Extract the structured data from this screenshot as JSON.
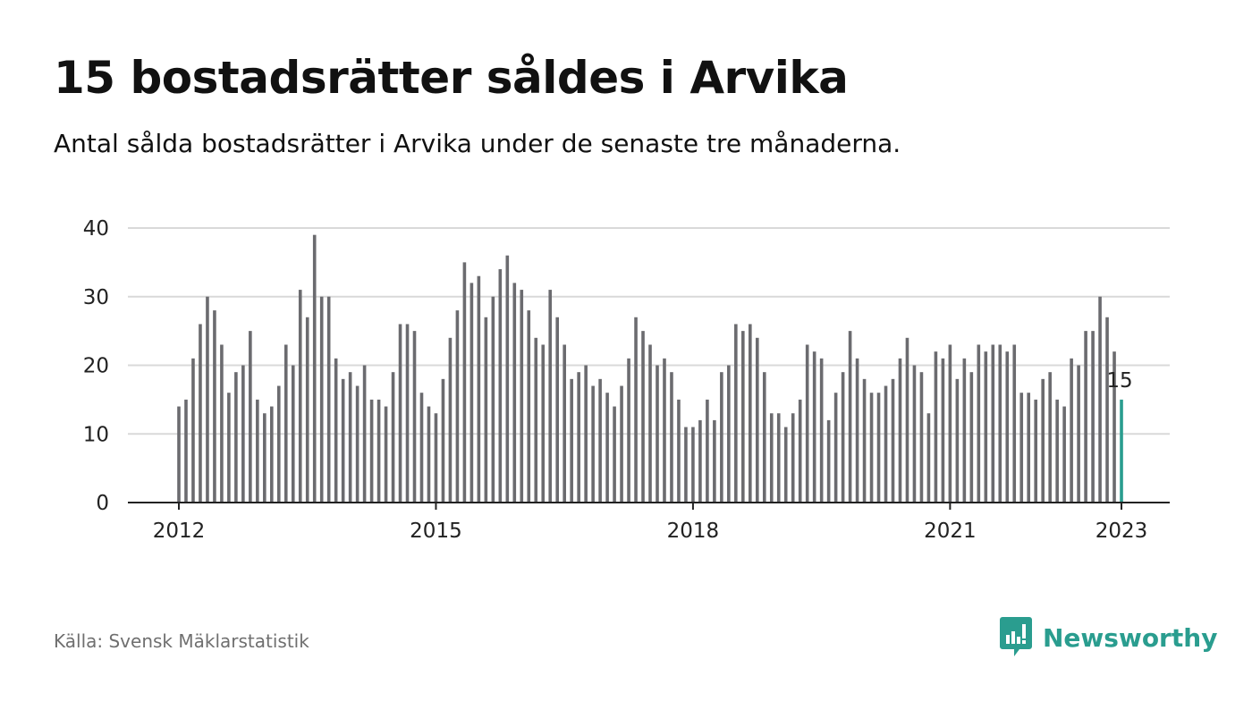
{
  "title": "15 bostadsrätter såldes i Arvika",
  "subtitle": "Antal sålda bostadsrätter i Arvika under de senaste tre månaderna.",
  "source": "Källa: Svensk Mäklarstatistik",
  "brand": "Newsworthy",
  "colors": {
    "bar": "#6b6b6f",
    "highlight": "#2a9d8f",
    "grid": "#d9d9d9",
    "axis": "#222222",
    "brand": "#2a9d8f"
  },
  "chart_data": {
    "type": "bar",
    "title": "",
    "xlabel": "",
    "ylabel": "",
    "ylim": [
      0,
      40
    ],
    "yticks": [
      0,
      10,
      20,
      30,
      40
    ],
    "grid": true,
    "start_month": "2012-01",
    "xticks": [
      {
        "label": "2012",
        "index": 0
      },
      {
        "label": "2015",
        "index": 36
      },
      {
        "label": "2018",
        "index": 72
      },
      {
        "label": "2021",
        "index": 108
      },
      {
        "label": "2023",
        "index": 132
      }
    ],
    "values": [
      14,
      15,
      21,
      26,
      30,
      28,
      23,
      16,
      19,
      20,
      25,
      15,
      13,
      14,
      17,
      23,
      20,
      31,
      27,
      39,
      30,
      30,
      21,
      18,
      19,
      17,
      20,
      15,
      15,
      14,
      19,
      26,
      26,
      25,
      16,
      14,
      13,
      18,
      24,
      28,
      35,
      32,
      33,
      27,
      30,
      34,
      36,
      32,
      31,
      28,
      24,
      23,
      31,
      27,
      23,
      18,
      19,
      20,
      17,
      18,
      16,
      14,
      17,
      21,
      27,
      25,
      23,
      20,
      21,
      19,
      15,
      11,
      11,
      12,
      15,
      12,
      19,
      20,
      26,
      25,
      26,
      24,
      19,
      13,
      13,
      11,
      13,
      15,
      23,
      22,
      21,
      12,
      16,
      19,
      25,
      21,
      18,
      16,
      16,
      17,
      18,
      21,
      24,
      20,
      19,
      13,
      22,
      21,
      23,
      18,
      21,
      19,
      23,
      22,
      23,
      23,
      22,
      23,
      16,
      16,
      15,
      18,
      19,
      15,
      14,
      21,
      20,
      25,
      25,
      30,
      27,
      22,
      15
    ],
    "highlight_index": 132,
    "highlight_label": "15"
  }
}
